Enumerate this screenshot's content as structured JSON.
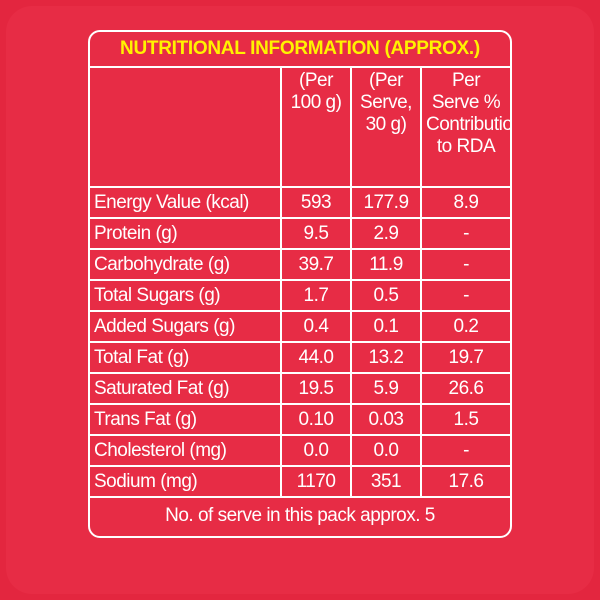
{
  "title": "NUTRITIONAL INFORMATION (APPROX.)",
  "table": {
    "header": [
      [],
      [
        "(Per",
        "100 g)"
      ],
      [
        "(Per",
        "Serve,",
        "30 g)"
      ],
      [
        "Per",
        "Serve %",
        "Contribution",
        "to RDA"
      ]
    ],
    "rows": [
      [
        "Energy Value (kcal)",
        "593",
        "177.9",
        "8.9"
      ],
      [
        "Protein (g)",
        "9.5",
        "2.9",
        "-"
      ],
      [
        "Carbohydrate (g)",
        "39.7",
        "11.9",
        "-"
      ],
      [
        "Total Sugars (g)",
        "1.7",
        "0.5",
        "-"
      ],
      [
        "Added Sugars (g)",
        "0.4",
        "0.1",
        "0.2"
      ],
      [
        "Total Fat (g)",
        "44.0",
        "13.2",
        "19.7"
      ],
      [
        "Saturated Fat (g)",
        "19.5",
        "5.9",
        "26.6"
      ],
      [
        "Trans Fat (g)",
        "0.10",
        "0.03",
        "1.5"
      ],
      [
        "Cholesterol (mg)",
        "0.0",
        "0.0",
        "-"
      ],
      [
        "Sodium (mg)",
        "1170",
        "351",
        "17.6"
      ]
    ]
  },
  "footer": "No. of serve in this pack approx. 5"
}
